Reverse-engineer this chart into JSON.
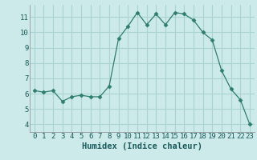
{
  "x": [
    0,
    1,
    2,
    3,
    4,
    5,
    6,
    7,
    8,
    9,
    10,
    11,
    12,
    13,
    14,
    15,
    16,
    17,
    18,
    19,
    20,
    21,
    22,
    23
  ],
  "y": [
    6.2,
    6.1,
    6.2,
    5.5,
    5.8,
    5.9,
    5.8,
    5.8,
    6.5,
    9.6,
    10.4,
    11.3,
    10.5,
    11.2,
    10.5,
    11.3,
    11.2,
    10.8,
    10.0,
    9.5,
    7.5,
    6.3,
    5.6,
    4.0
  ],
  "line_color": "#2e7d6e",
  "marker": "D",
  "marker_size": 2.5,
  "bg_color": "#cceaea",
  "grid_color": "#aad4d4",
  "xlabel": "Humidex (Indice chaleur)",
  "xlim": [
    -0.5,
    23.5
  ],
  "ylim": [
    3.5,
    11.8
  ],
  "yticks": [
    4,
    5,
    6,
    7,
    8,
    9,
    10,
    11
  ],
  "xticks": [
    0,
    1,
    2,
    3,
    4,
    5,
    6,
    7,
    8,
    9,
    10,
    11,
    12,
    13,
    14,
    15,
    16,
    17,
    18,
    19,
    20,
    21,
    22,
    23
  ],
  "axis_fontsize": 7,
  "tick_fontsize": 6.5,
  "xlabel_fontsize": 7.5
}
